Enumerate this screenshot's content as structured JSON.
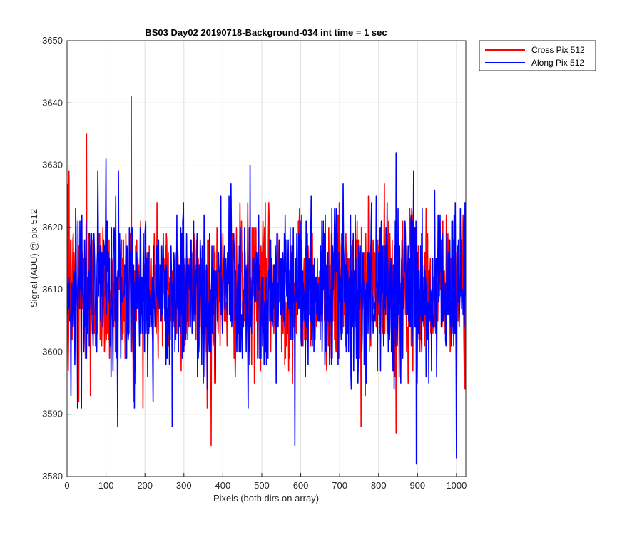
{
  "chart_data": {
    "type": "line",
    "title": "BS03 Day02 20190718-Background-034 int time = 1 sec",
    "xlabel": "Pixels (both dirs on array)",
    "ylabel": "Signal (ADU) @ pix 512",
    "xlim": [
      0,
      1024
    ],
    "ylim": [
      3580,
      3650
    ],
    "x_ticks": [
      0,
      100,
      200,
      300,
      400,
      500,
      600,
      700,
      800,
      900,
      1000
    ],
    "y_ticks": [
      3580,
      3590,
      3600,
      3610,
      3620,
      3630,
      3640,
      3650
    ],
    "grid": true,
    "legend_position": "outside-top-right",
    "series": [
      {
        "name": "Cross Pix 512",
        "color": "#ff0000",
        "baseline": 3610,
        "spread": 6,
        "x_start": 1,
        "x_end": 1024,
        "notable_points": [
          {
            "x": 3,
            "y": 3597
          },
          {
            "x": 5,
            "y": 3629
          },
          {
            "x": 30,
            "y": 3592
          },
          {
            "x": 50,
            "y": 3635
          },
          {
            "x": 60,
            "y": 3593
          },
          {
            "x": 165,
            "y": 3641
          },
          {
            "x": 170,
            "y": 3592
          },
          {
            "x": 370,
            "y": 3585
          },
          {
            "x": 755,
            "y": 3588
          },
          {
            "x": 845,
            "y": 3587
          },
          {
            "x": 1020,
            "y": 3597
          }
        ]
      },
      {
        "name": "Along Pix 512",
        "color": "#0000ff",
        "baseline": 3610,
        "spread": 6.5,
        "x_start": 1,
        "x_end": 1024,
        "notable_points": [
          {
            "x": 10,
            "y": 3593
          },
          {
            "x": 100,
            "y": 3631
          },
          {
            "x": 130,
            "y": 3588
          },
          {
            "x": 270,
            "y": 3588
          },
          {
            "x": 350,
            "y": 3595
          },
          {
            "x": 470,
            "y": 3630
          },
          {
            "x": 585,
            "y": 3585
          },
          {
            "x": 840,
            "y": 3594
          },
          {
            "x": 845,
            "y": 3632
          },
          {
            "x": 897,
            "y": 3582
          },
          {
            "x": 1000,
            "y": 3583
          },
          {
            "x": 1022,
            "y": 3624
          }
        ]
      }
    ]
  }
}
